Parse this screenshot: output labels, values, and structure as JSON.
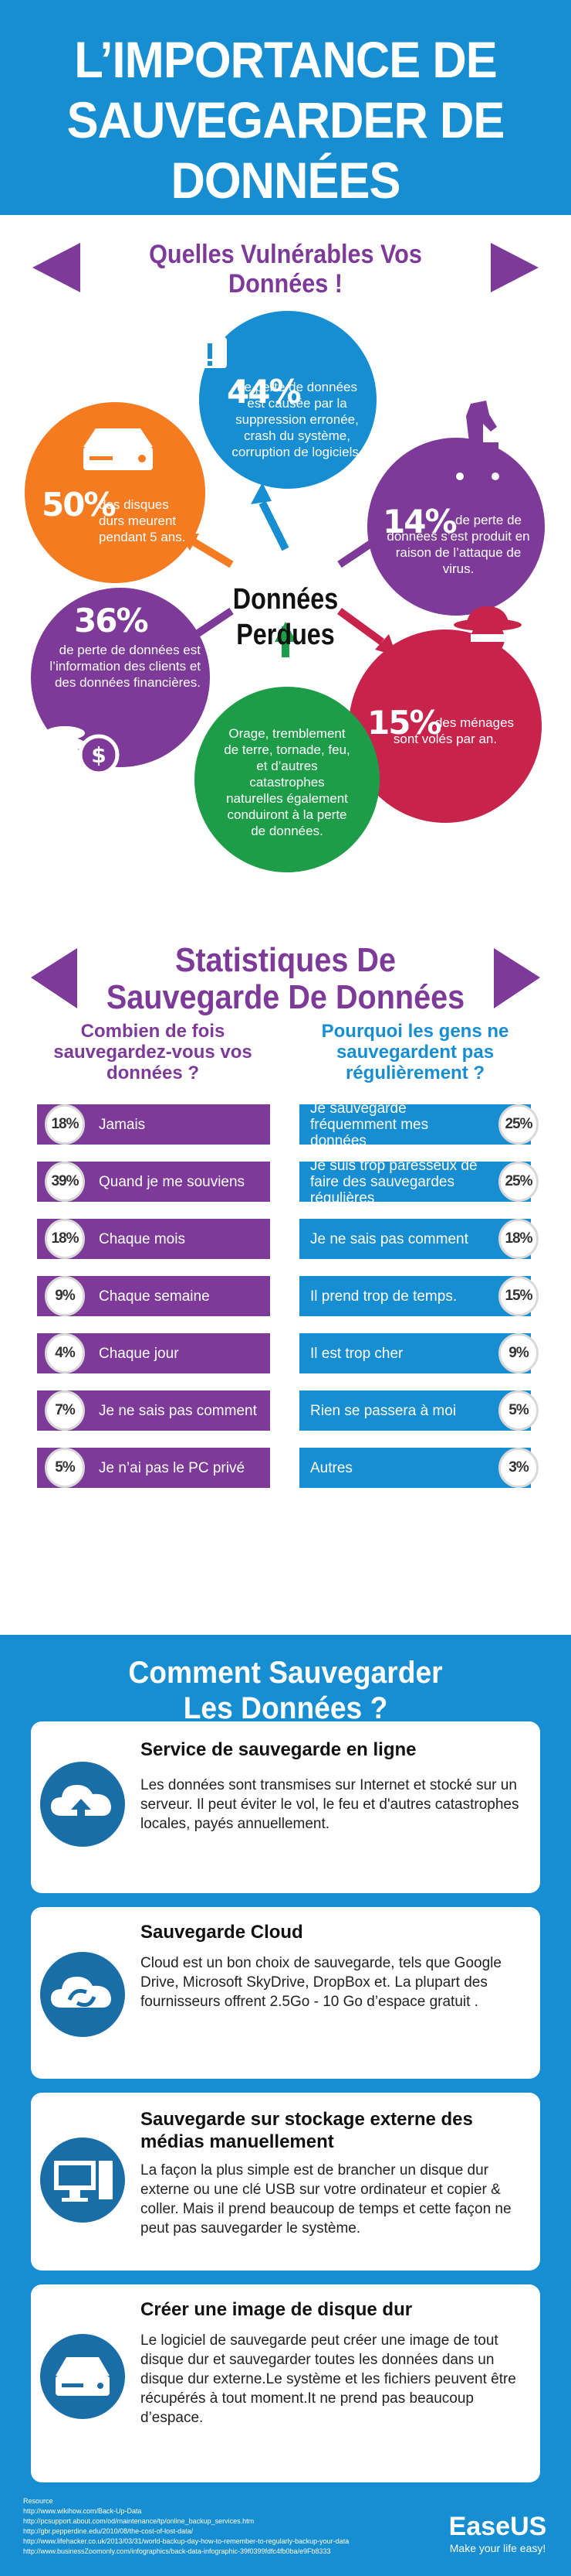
{
  "header": {
    "title": "L’IMPORTANCE DE\nSAUVEGARDER DE\nDONNÉES"
  },
  "vulnerabilities": {
    "title": "Quelles Vulnérables Vos\nDonnées !",
    "center": "Données\nPerdues",
    "items": [
      {
        "pct": "44%",
        "text": "de perte de données est causée par la suppression erronée, crash du système, corruption de logiciels.",
        "color": "#178ed2",
        "icon": "warning-icon"
      },
      {
        "pct": "50%",
        "text": "des disques durs meurent pendant 5 ans.",
        "color": "#f47b20",
        "icon": "hard-drive-icon"
      },
      {
        "pct": "14%",
        "text": "de perte de données s’est produit en raison de l’attaque de virus.",
        "color": "#7d3a99",
        "icon": "trojan-horse-icon"
      },
      {
        "pct": "36%",
        "text": "de perte de données est l’information des clients et des données financières.",
        "color": "#7d3a99",
        "icon": "coins-icon"
      },
      {
        "pct": "15%",
        "text": "des ménages sont volés par an.",
        "color": "#c8234a",
        "icon": "thief-icon"
      },
      {
        "pct": "",
        "text": "Orage, tremblement de terre, tornade, feu, et d’autres catastrophes naturelles également conduiront à la perte de données.",
        "color": "#1e9d48",
        "icon": ""
      }
    ]
  },
  "stats": {
    "title": "Statistiques De\nSauvegarde De Données",
    "left_question": "Combien de fois sauvegardez-vous  vos données ?",
    "right_question": "Pourquoi les gens ne sauvegardent pas régulièrement ?",
    "left_rows": [
      {
        "pct": "18%",
        "label": "Jamais"
      },
      {
        "pct": "39%",
        "label": "Quand je me souviens"
      },
      {
        "pct": "18%",
        "label": "Chaque mois"
      },
      {
        "pct": "9%",
        "label": "Chaque semaine"
      },
      {
        "pct": "4%",
        "label": "Chaque jour"
      },
      {
        "pct": "7%",
        "label": "Je ne sais pas comment"
      },
      {
        "pct": "5%",
        "label": "Je n’ai pas le PC privé"
      }
    ],
    "right_rows": [
      {
        "pct": "25%",
        "label": "Je sauvegarde fréquemment mes données"
      },
      {
        "pct": "25%",
        "label": "Je suis trop paresseux de  faire des sauvegardes régulières"
      },
      {
        "pct": "18%",
        "label": "Je ne sais pas comment"
      },
      {
        "pct": "15%",
        "label": "Il prend trop de temps."
      },
      {
        "pct": "9%",
        "label": "Il est trop cher"
      },
      {
        "pct": "5%",
        "label": "Rien se passera à moi"
      },
      {
        "pct": "3%",
        "label": "Autres"
      }
    ]
  },
  "methods": {
    "title": "Comment Sauvegarder\nLes Données ?",
    "cards": [
      {
        "title": "Service de sauvegarde en ligne",
        "text": "Les données sont transmises sur Internet et stocké sur un serveur. Il peut éviter le vol, le feu et d'autres catastrophes locales, payés annuellement.",
        "icon": "cloud-upload-icon"
      },
      {
        "title": "Sauvegarde Cloud",
        "text": "Cloud est un bon choix de sauvegarde, tels que Google Drive, Microsoft SkyDrive, DropBox et. La plupart des fournisseurs offrent 2.5Go - 10 Go d’espace gratuit .",
        "icon": "cloud-sync-icon"
      },
      {
        "title": "Sauvegarde sur stockage externe des médias manuellement",
        "text": "La façon la plus simple est de brancher un disque dur externe ou une clé USB sur votre ordinateur et copier & coller. Mais il prend beaucoup de temps et cette façon ne peut pas sauvegarder le système.",
        "icon": "computer-icon"
      },
      {
        "title": "Créer une image de disque dur",
        "text": "Le logiciel de sauvegarde peut créer une image de tout disque dur et sauvegarder toutes les données dans un disque dur externe.Le système et les fichiers peuvent être récupérés à tout moment.It ne prend pas beaucoup d’espace.",
        "icon": "hard-disk-icon"
      }
    ]
  },
  "footer": {
    "sources_label": "Resource",
    "sources": [
      "http://www.wikihow.com/Back-Up-Data",
      "http://pcsupport.about.com/od/maintenance/tp/online_backup_services.htm",
      "http://gbr.pepperdine.edu/2010/08/the-cost-of-lost-data/",
      "http://www.lifehacker.co.uk/2013/03/31/world-backup-day-how-to-remember-to-regularly-backup-your-data",
      "http://www.businessZoomonly.com/infographics/back-data-infographic-39f0399fdfc4fb0ba/e9Fb8333"
    ],
    "brand": "EaseUS",
    "tagline": "Make your life easy!"
  }
}
